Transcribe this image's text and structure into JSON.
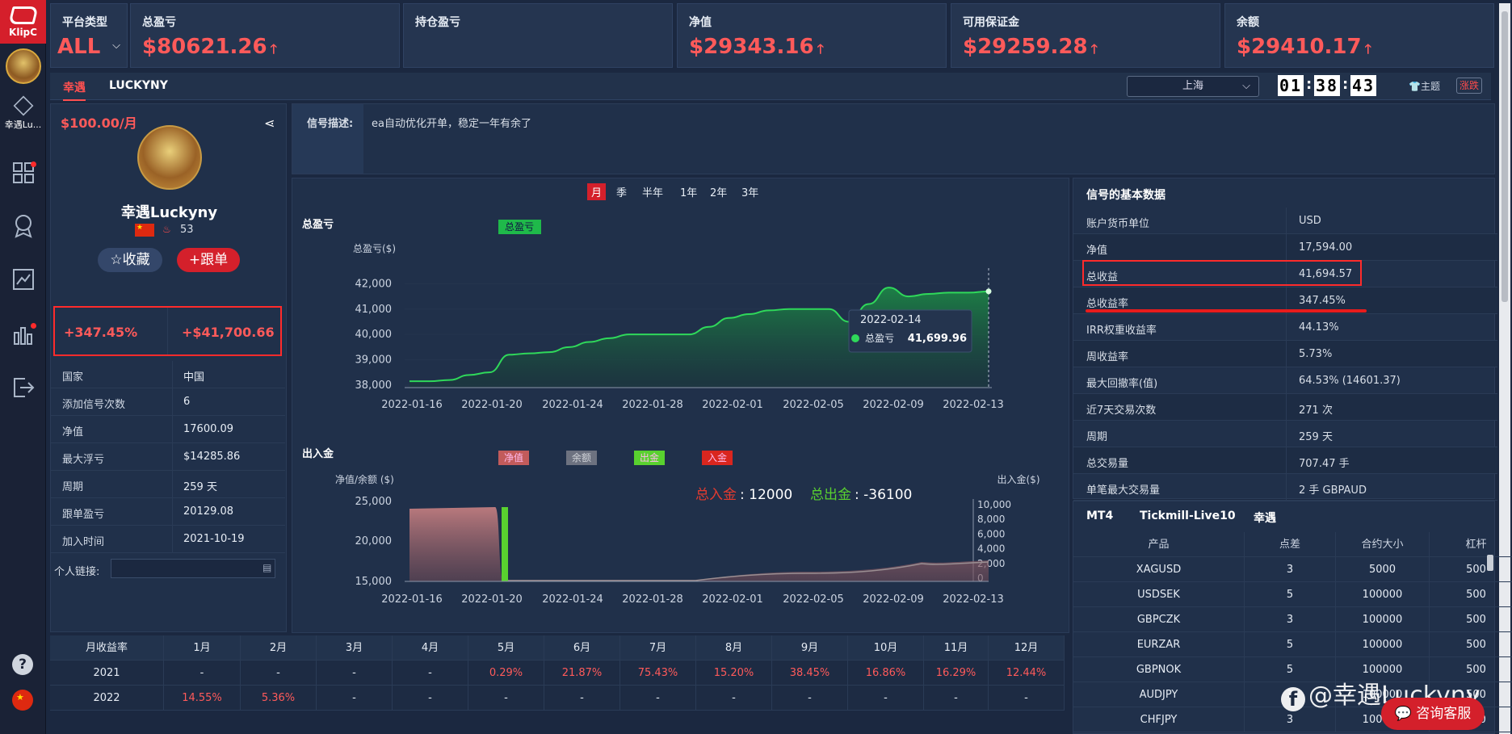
{
  "brand": {
    "logo_text": "KlipC"
  },
  "sidebar": {
    "profile_label": "幸遇Lu..."
  },
  "stats": {
    "platform": {
      "label": "平台类型",
      "value": "ALL"
    },
    "total_pnl": {
      "label": "总盈亏",
      "value": "$80621.26"
    },
    "position_pnl": {
      "label": "持仓盈亏",
      "value": ""
    },
    "equity": {
      "label": "净值",
      "value": "$29343.16"
    },
    "free_margin": {
      "label": "可用保证金",
      "value": "$29259.28"
    },
    "balance": {
      "label": "余额",
      "value": "$29410.17"
    }
  },
  "tabs": [
    {
      "label": "幸遇"
    },
    {
      "label": "LUCKYNY"
    }
  ],
  "location": "上海",
  "clock": [
    "01",
    "38",
    "43"
  ],
  "theme_label": "主题",
  "updown_label": "涨跌",
  "profile": {
    "price": "$100.00/月",
    "name": "幸遇Luckyny",
    "score": "53",
    "fav_label": "收藏",
    "follow_label": "跟单",
    "return_pct": "+347.45%",
    "return_amt": "+$41,700.66",
    "rows": [
      {
        "k": "国家",
        "v": "中国"
      },
      {
        "k": "添加信号次数",
        "v": "6"
      },
      {
        "k": "净值",
        "v": "17600.09"
      },
      {
        "k": "最大浮亏",
        "v": "$14285.86"
      },
      {
        "k": "周期",
        "v": "259 天"
      },
      {
        "k": "跟单盈亏",
        "v": "20129.08"
      },
      {
        "k": "加入时间",
        "v": "2021-10-19"
      }
    ],
    "link_label": "个人链接:"
  },
  "signal": {
    "label": "信号描述:",
    "text": "ea自动优化开单，稳定一年有余了"
  },
  "periods": [
    "月",
    "季",
    "半年",
    "1年",
    "2年",
    "3年"
  ],
  "chart_data": [
    {
      "type": "area",
      "title": "总盈亏",
      "ylabel": "总盈亏($)",
      "legend": [
        "总盈亏"
      ],
      "x": [
        "2022-01-16",
        "2022-01-17",
        "2022-01-18",
        "2022-01-19",
        "2022-01-20",
        "2022-01-21",
        "2022-01-22",
        "2022-01-23",
        "2022-01-24",
        "2022-01-25",
        "2022-01-26",
        "2022-01-27",
        "2022-01-28",
        "2022-01-29",
        "2022-01-30",
        "2022-01-31",
        "2022-02-01",
        "2022-02-02",
        "2022-02-03",
        "2022-02-04",
        "2022-02-05",
        "2022-02-06",
        "2022-02-07",
        "2022-02-08",
        "2022-02-09",
        "2022-02-10",
        "2022-02-11",
        "2022-02-12",
        "2022-02-13",
        "2022-02-14"
      ],
      "values": [
        38150,
        38150,
        38200,
        38400,
        38500,
        39200,
        39250,
        39300,
        39500,
        39700,
        39850,
        40000,
        40000,
        40000,
        40000,
        40300,
        40650,
        40800,
        40950,
        41000,
        41000,
        41000,
        40500,
        41200,
        41850,
        41500,
        41600,
        41650,
        41650,
        41700
      ],
      "xticks": [
        "2022-01-16",
        "2022-01-20",
        "2022-01-24",
        "2022-01-28",
        "2022-02-01",
        "2022-02-05",
        "2022-02-09",
        "2022-02-13"
      ],
      "yticks": [
        "42,000",
        "41,000",
        "40,000",
        "39,000",
        "38,000"
      ],
      "ylim": [
        37900,
        42300
      ],
      "tooltip": {
        "date": "2022-02-14",
        "name": "总盈亏",
        "value": "41,699.96"
      }
    },
    {
      "type": "area",
      "title": "出入金",
      "ylabel": "净值/余额 ($)",
      "y2label": "出入金($)",
      "legend": [
        "净值",
        "余额",
        "出金",
        "入金"
      ],
      "xticks": [
        "2022-01-16",
        "2022-01-20",
        "2022-01-24",
        "2022-01-28",
        "2022-02-01",
        "2022-02-05",
        "2022-02-09",
        "2022-02-13"
      ],
      "yticks": [
        "25,000",
        "20,000",
        "15,000"
      ],
      "y2ticks": [
        "10,000",
        "8,000",
        "6,000",
        "4,000",
        "2,000",
        "0"
      ],
      "deposit_label": "总入金",
      "deposit_value": ": 12000",
      "withdraw_label": "总出金",
      "withdraw_value": ": -36100"
    }
  ],
  "basic": {
    "title": "信号的基本数据",
    "rows": [
      {
        "k": "账户货币单位",
        "v": "USD"
      },
      {
        "k": "净值",
        "v": "17,594.00"
      },
      {
        "k": "总收益",
        "v": "41,694.57"
      },
      {
        "k": "总收益率",
        "v": "347.45%"
      },
      {
        "k": "IRR权重收益率",
        "v": "44.13%"
      },
      {
        "k": "周收益率",
        "v": "5.73%"
      },
      {
        "k": "最大回撤率(值)",
        "v": "64.53% (14601.37)"
      },
      {
        "k": "近7天交易次数",
        "v": "271 次"
      },
      {
        "k": "周期",
        "v": "259 天"
      },
      {
        "k": "总交易量",
        "v": "707.47 手"
      },
      {
        "k": "单笔最大交易量",
        "v": "2 手 GBPAUD"
      }
    ]
  },
  "mt4": {
    "platform": "MT4",
    "server": "Tickmill-Live10",
    "name": "幸遇",
    "headers": [
      "产品",
      "点差",
      "合约大小",
      "杠杆"
    ],
    "rows": [
      [
        "XAGUSD",
        "3",
        "5000",
        "500"
      ],
      [
        "USDSEK",
        "5",
        "100000",
        "500"
      ],
      [
        "GBPCZK",
        "3",
        "100000",
        "500"
      ],
      [
        "EURZAR",
        "5",
        "100000",
        "500"
      ],
      [
        "GBPNOK",
        "5",
        "100000",
        "500"
      ],
      [
        "AUDJPY",
        "3",
        "100000",
        "500"
      ],
      [
        "CHFJPY",
        "3",
        "100000",
        "500"
      ]
    ]
  },
  "monthly": {
    "header": [
      "月收益率",
      "1月",
      "2月",
      "3月",
      "4月",
      "5月",
      "6月",
      "7月",
      "8月",
      "9月",
      "10月",
      "11月",
      "12月"
    ],
    "rows": [
      [
        "2021",
        "-",
        "-",
        "-",
        "-",
        "0.29%",
        "21.87%",
        "75.43%",
        "15.20%",
        "38.45%",
        "16.86%",
        "16.29%",
        "12.44%"
      ],
      [
        "2022",
        "14.55%",
        "5.36%",
        "-",
        "-",
        "-",
        "-",
        "-",
        "-",
        "-",
        "-",
        "-",
        "-"
      ]
    ]
  },
  "watermark": "@幸遇Luckyny",
  "service_label": "咨询客服"
}
